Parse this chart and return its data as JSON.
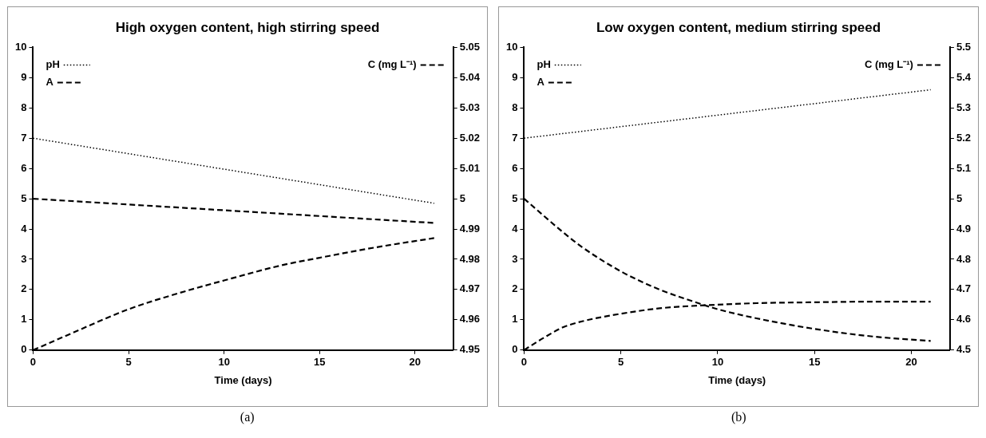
{
  "chart_data": [
    {
      "type": "line",
      "title": "High oxygen content, high stirring speed",
      "xlabel": "Time (days)",
      "xlim": [
        0,
        22
      ],
      "xticks": [
        0,
        5,
        10,
        15,
        20
      ],
      "ylim": [
        0,
        10
      ],
      "yticks": [
        0,
        1,
        2,
        3,
        4,
        5,
        6,
        7,
        8,
        9,
        10
      ],
      "y2lim": [
        4.95,
        5.05
      ],
      "y2ticks": [
        4.95,
        4.96,
        4.97,
        4.98,
        4.99,
        5,
        5.01,
        5.02,
        5.03,
        5.04,
        5.05
      ],
      "grid": false,
      "legend": "top left",
      "annotations": [
        "(a)"
      ],
      "series": [
        {
          "name": "pH",
          "color": "#000000",
          "line_style": "dotted",
          "x": [
            0,
            21
          ],
          "values": [
            7,
            4.85
          ]
        },
        {
          "name": "A",
          "color": "#000000",
          "line_style": "dashed",
          "x": [
            0,
            2,
            5,
            8,
            10,
            13,
            15,
            18,
            21
          ],
          "values": [
            0,
            0.55,
            1.35,
            1.95,
            2.3,
            2.8,
            3.05,
            3.4,
            3.7
          ]
        },
        {
          "name": "C (mg L⁻¹)",
          "color": "#000000",
          "line_style": "dashed",
          "axis": "y2",
          "x": [
            0,
            21
          ],
          "values": [
            5.0,
            4.992
          ]
        }
      ]
    },
    {
      "type": "line",
      "title": "Low oxygen content, medium stirring speed",
      "xlabel": "Time (days)",
      "xlim": [
        0,
        22
      ],
      "xticks": [
        0,
        5,
        10,
        15,
        20
      ],
      "ylim": [
        0,
        10
      ],
      "yticks": [
        0,
        1,
        2,
        3,
        4,
        5,
        6,
        7,
        8,
        9,
        10
      ],
      "y2lim": [
        4.5,
        5.5
      ],
      "y2ticks": [
        4.5,
        4.6,
        4.7,
        4.8,
        4.9,
        5,
        5.1,
        5.2,
        5.3,
        5.4,
        5.5
      ],
      "grid": false,
      "legend": "top left",
      "annotations": [
        "(b)"
      ],
      "series": [
        {
          "name": "pH",
          "color": "#000000",
          "line_style": "dotted",
          "x": [
            0,
            21
          ],
          "values": [
            7,
            8.6
          ]
        },
        {
          "name": "A",
          "color": "#000000",
          "line_style": "dashed",
          "x": [
            0,
            1,
            2,
            3,
            5,
            7,
            9,
            10,
            12,
            15,
            18,
            21
          ],
          "values": [
            0,
            0.4,
            0.75,
            0.95,
            1.2,
            1.38,
            1.47,
            1.5,
            1.55,
            1.58,
            1.6,
            1.6
          ]
        },
        {
          "name": "C (mg L⁻¹)",
          "color": "#000000",
          "line_style": "dashed",
          "axis": "y2",
          "x": [
            0,
            2,
            3,
            5,
            7,
            9,
            10,
            12,
            15,
            18,
            21
          ],
          "values": [
            5.0,
            4.89,
            4.84,
            4.76,
            4.7,
            4.655,
            4.635,
            4.605,
            4.57,
            4.545,
            4.53
          ]
        }
      ]
    }
  ]
}
